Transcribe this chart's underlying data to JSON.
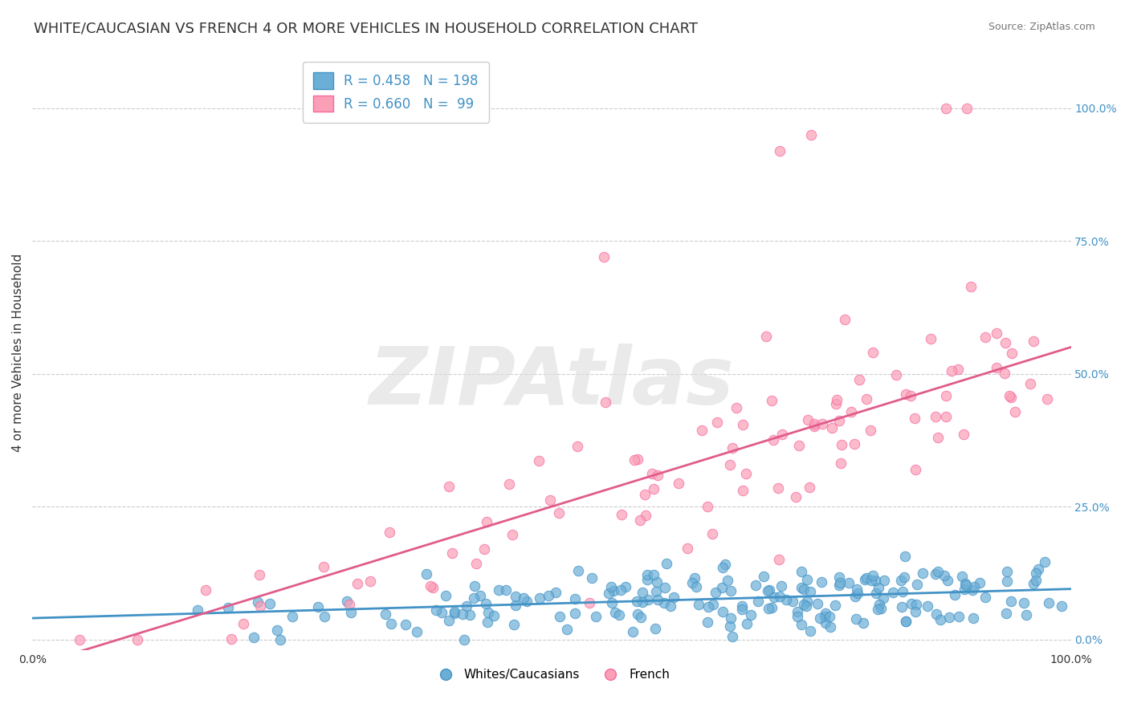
{
  "title": "WHITE/CAUCASIAN VS FRENCH 4 OR MORE VEHICLES IN HOUSEHOLD CORRELATION CHART",
  "source": "Source: ZipAtlas.com",
  "ylabel": "4 or more Vehicles in Household",
  "xlabel": "",
  "xlim": [
    0,
    1
  ],
  "ylim": [
    -0.02,
    1.1
  ],
  "yticks": [
    0,
    0.25,
    0.5,
    0.75,
    1.0
  ],
  "ytick_labels": [
    "0.0%",
    "25.0%",
    "50.0%",
    "75.0%",
    "100.0%"
  ],
  "blue_color": "#6baed6",
  "pink_color": "#fa9fb5",
  "blue_edge": "#4292c6",
  "pink_edge": "#f768a1",
  "blue_line_color": "#4292c6",
  "pink_line_color": "#e05c8a",
  "legend_r_blue": "R = 0.458   N = 198",
  "legend_r_pink": "R = 0.660   N =  99",
  "watermark": "ZIPAtlas",
  "watermark_color": "#dddddd",
  "background_color": "#ffffff",
  "grid_color": "#cccccc",
  "title_fontsize": 13,
  "axis_label_fontsize": 11,
  "tick_fontsize": 10,
  "blue_N": 198,
  "pink_N": 99,
  "blue_slope": 0.055,
  "blue_intercept": 0.04,
  "pink_slope": 0.6,
  "pink_intercept": -0.05
}
